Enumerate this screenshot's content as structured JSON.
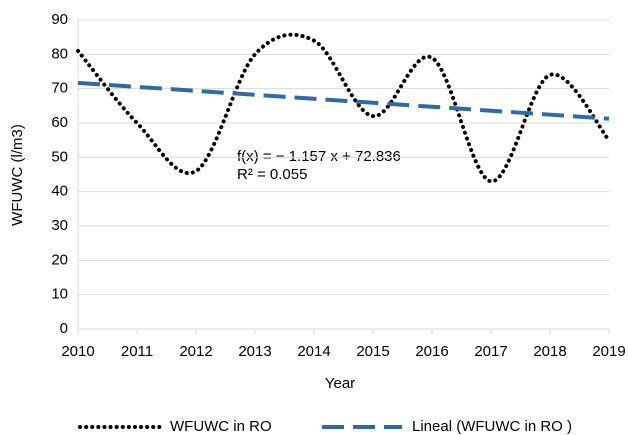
{
  "chart_data": {
    "type": "line",
    "x": [
      2010,
      2011,
      2012,
      2013,
      2014,
      2015,
      2016,
      2017,
      2018,
      2019
    ],
    "series": [
      {
        "name": "WFUWC in RO",
        "color": "#000000",
        "style": "dotted",
        "values": [
          81,
          60,
          46,
          80,
          84,
          62,
          79,
          43,
          74,
          55
        ]
      },
      {
        "name": "Lineal (WFUWC in RO )",
        "color": "#2e6aa6",
        "style": "dashed",
        "values": [
          71.68,
          70.52,
          69.37,
          68.21,
          67.05,
          65.89,
          64.73,
          63.58,
          62.42,
          61.26
        ]
      }
    ],
    "xlim": [
      2010,
      2019
    ],
    "xticks": [
      2010,
      2011,
      2012,
      2013,
      2014,
      2015,
      2016,
      2017,
      2018,
      2019
    ],
    "ylim": [
      0,
      90
    ],
    "yticks": [
      0,
      10,
      20,
      30,
      40,
      50,
      60,
      70,
      80,
      90
    ],
    "xlabel": "Year",
    "ylabel": "WFUWC (l/m3)",
    "annotations": [
      "f(x) = − 1.157 x + 72.836",
      "R² = 0.055"
    ],
    "grid": true
  }
}
